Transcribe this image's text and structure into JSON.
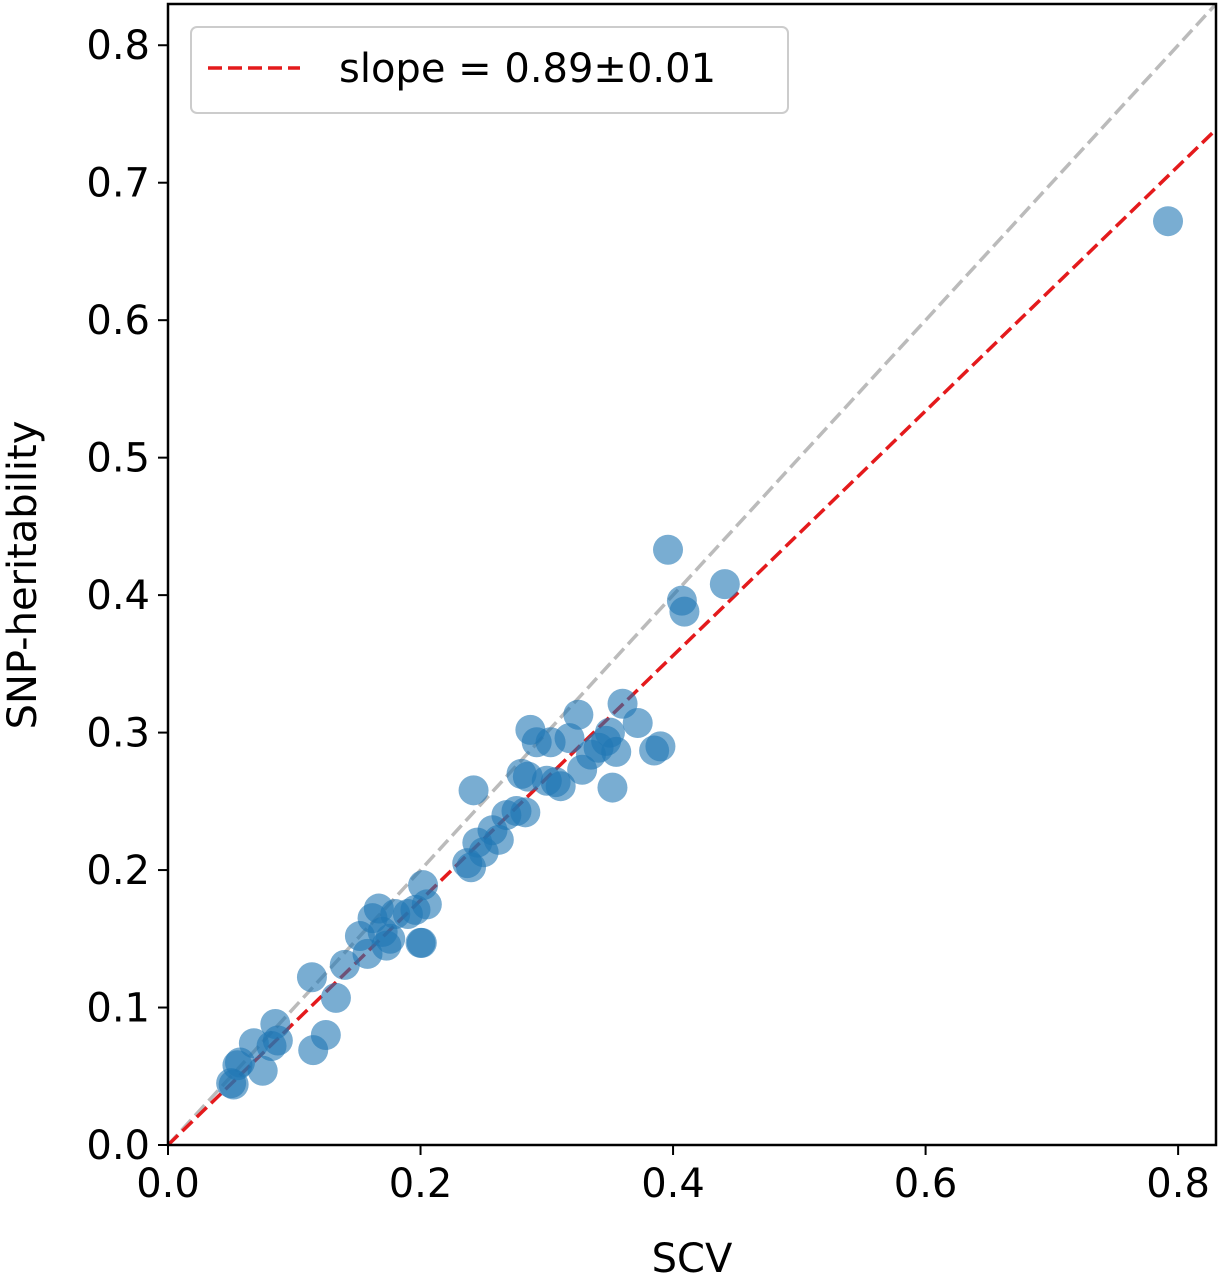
{
  "chart_data": {
    "type": "scatter",
    "xlabel": "SCV",
    "ylabel": "SNP-heritability",
    "xlim": [
      0.0,
      0.83
    ],
    "ylim": [
      0.0,
      0.83
    ],
    "xticks": [
      "0.0",
      "0.2",
      "0.4",
      "0.6",
      "0.8"
    ],
    "yticks": [
      "0.0",
      "0.1",
      "0.2",
      "0.3",
      "0.4",
      "0.5",
      "0.6",
      "0.7",
      "0.8"
    ],
    "grid": false,
    "legend": {
      "placement": "top-left",
      "label": "slope = 0.89±0.01"
    },
    "colors": {
      "points": "#1f77b4",
      "fit_line": "#e41a1c",
      "identity_line": "#bbbbbb"
    },
    "lines": [
      {
        "kind": "identity",
        "slope": 1.0,
        "style": "dashed"
      },
      {
        "kind": "fit",
        "slope": 0.89,
        "style": "dashed"
      }
    ],
    "points": [
      {
        "x": 0.05,
        "y": 0.045
      },
      {
        "x": 0.052,
        "y": 0.044
      },
      {
        "x": 0.055,
        "y": 0.058
      },
      {
        "x": 0.057,
        "y": 0.06
      },
      {
        "x": 0.068,
        "y": 0.074
      },
      {
        "x": 0.075,
        "y": 0.054
      },
      {
        "x": 0.082,
        "y": 0.072
      },
      {
        "x": 0.085,
        "y": 0.088
      },
      {
        "x": 0.087,
        "y": 0.076
      },
      {
        "x": 0.114,
        "y": 0.122
      },
      {
        "x": 0.115,
        "y": 0.069
      },
      {
        "x": 0.125,
        "y": 0.08
      },
      {
        "x": 0.133,
        "y": 0.107
      },
      {
        "x": 0.14,
        "y": 0.131
      },
      {
        "x": 0.152,
        "y": 0.152
      },
      {
        "x": 0.158,
        "y": 0.139
      },
      {
        "x": 0.162,
        "y": 0.165
      },
      {
        "x": 0.167,
        "y": 0.172
      },
      {
        "x": 0.17,
        "y": 0.155
      },
      {
        "x": 0.173,
        "y": 0.145
      },
      {
        "x": 0.176,
        "y": 0.15
      },
      {
        "x": 0.18,
        "y": 0.168
      },
      {
        "x": 0.19,
        "y": 0.168
      },
      {
        "x": 0.196,
        "y": 0.171
      },
      {
        "x": 0.2,
        "y": 0.147
      },
      {
        "x": 0.201,
        "y": 0.147
      },
      {
        "x": 0.202,
        "y": 0.189
      },
      {
        "x": 0.205,
        "y": 0.175
      },
      {
        "x": 0.237,
        "y": 0.205
      },
      {
        "x": 0.24,
        "y": 0.202
      },
      {
        "x": 0.242,
        "y": 0.258
      },
      {
        "x": 0.245,
        "y": 0.22
      },
      {
        "x": 0.25,
        "y": 0.213
      },
      {
        "x": 0.257,
        "y": 0.229
      },
      {
        "x": 0.262,
        "y": 0.222
      },
      {
        "x": 0.268,
        "y": 0.24
      },
      {
        "x": 0.276,
        "y": 0.243
      },
      {
        "x": 0.28,
        "y": 0.27
      },
      {
        "x": 0.283,
        "y": 0.242
      },
      {
        "x": 0.285,
        "y": 0.268
      },
      {
        "x": 0.287,
        "y": 0.302
      },
      {
        "x": 0.292,
        "y": 0.293
      },
      {
        "x": 0.3,
        "y": 0.265
      },
      {
        "x": 0.303,
        "y": 0.293
      },
      {
        "x": 0.307,
        "y": 0.264
      },
      {
        "x": 0.311,
        "y": 0.261
      },
      {
        "x": 0.318,
        "y": 0.296
      },
      {
        "x": 0.325,
        "y": 0.313
      },
      {
        "x": 0.328,
        "y": 0.273
      },
      {
        "x": 0.335,
        "y": 0.284
      },
      {
        "x": 0.341,
        "y": 0.289
      },
      {
        "x": 0.347,
        "y": 0.294
      },
      {
        "x": 0.35,
        "y": 0.3
      },
      {
        "x": 0.352,
        "y": 0.26
      },
      {
        "x": 0.355,
        "y": 0.286
      },
      {
        "x": 0.36,
        "y": 0.321
      },
      {
        "x": 0.372,
        "y": 0.307
      },
      {
        "x": 0.385,
        "y": 0.287
      },
      {
        "x": 0.39,
        "y": 0.29
      },
      {
        "x": 0.396,
        "y": 0.433
      },
      {
        "x": 0.407,
        "y": 0.396
      },
      {
        "x": 0.409,
        "y": 0.388
      },
      {
        "x": 0.441,
        "y": 0.408
      },
      {
        "x": 0.792,
        "y": 0.672
      }
    ]
  }
}
